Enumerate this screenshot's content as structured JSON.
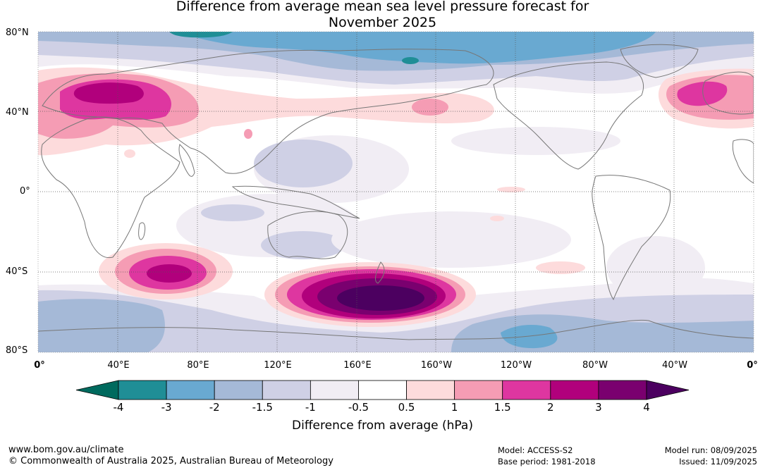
{
  "title": {
    "line1": "Difference from average mean sea level pressure forecast for",
    "line2": "November 2025"
  },
  "map": {
    "lat_labels": [
      "80°N",
      "40°N",
      "0°",
      "40°S",
      "80°S"
    ],
    "lon_labels": [
      "0°",
      "40°E",
      "80°E",
      "120°E",
      "160°E",
      "160°W",
      "120°W",
      "80°W",
      "40°W",
      "0°"
    ],
    "anomaly_regions": [
      {
        "name": "Southern Ocean south of New Zealand",
        "value_class": "3 to 4 and above 4"
      },
      {
        "name": "South Indian Ocean",
        "value_class": "2 to 3"
      },
      {
        "name": "Central Asia",
        "value_class": "1.5 to 3"
      },
      {
        "name": "North Atlantic",
        "value_class": "1.5 to 2"
      },
      {
        "name": "Arctic",
        "value_class": "-3 to -1.5"
      },
      {
        "name": "Antarctic coast",
        "value_class": "-3 to -1"
      }
    ]
  },
  "colorbar": {
    "ticks": [
      "-4",
      "-3",
      "-2",
      "-1.5",
      "-1",
      "-0.5",
      "0.5",
      "1",
      "1.5",
      "2",
      "3",
      "4"
    ],
    "colors": [
      "#006a5e",
      "#1f8e96",
      "#69a9d1",
      "#a5b9d7",
      "#cfd0e5",
      "#f1edf4",
      "#ffffff",
      "#fddbdc",
      "#f59cb4",
      "#de36a0",
      "#b1007c",
      "#7a006f",
      "#4c0060"
    ],
    "label": "Difference from average (hPa)"
  },
  "footer": {
    "url": "www.bom.gov.au/climate",
    "copyright": "© Commonwealth of Australia 2025, Australian Bureau of Meteorology",
    "model": "Model: ACCESS-S2",
    "base_period": "Base period: 1981-2018",
    "model_run": "Model run: 08/09/2025",
    "issued": "Issued: 11/09/2025"
  }
}
